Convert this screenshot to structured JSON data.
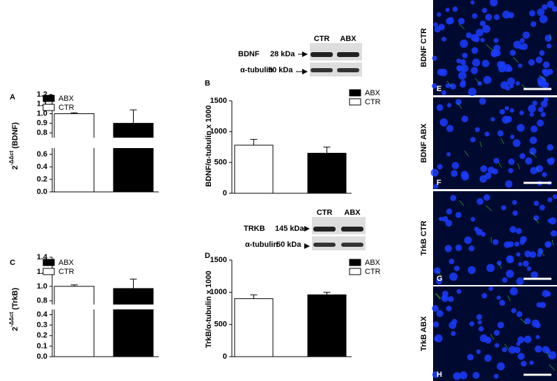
{
  "chart_data": [
    {
      "type": "bar",
      "panel_label": "A",
      "ylabel": "2",
      "ylabel_superscript": "-ΔΔct",
      "ylabel_suffix": " (BDNF)",
      "ylim": [
        0,
        1.2
      ],
      "axis_break": [
        0.7,
        0.75
      ],
      "yticks": [
        {
          "value": 0,
          "label": "0.0"
        },
        0.2,
        0.4,
        0.6,
        0.8,
        0.9,
        {
          "value": 1,
          "label": "1.0"
        },
        1.1,
        1.2
      ],
      "series": [
        {
          "name": "CTR",
          "color": "#ffffff",
          "values": [
            1.0
          ],
          "errors": [
            0.01
          ]
        },
        {
          "name": "ABX",
          "color": "#000000",
          "values": [
            0.9
          ],
          "errors": [
            0.14
          ]
        }
      ]
    },
    {
      "type": "bar",
      "panel_label": "B",
      "ylabel": "BDNF/α-tubulin x 1000",
      "ylim": [
        0,
        1500
      ],
      "yticks": [
        0,
        500,
        1000,
        1500
      ],
      "series": [
        {
          "name": "CTR",
          "color": "#ffffff",
          "values": [
            780
          ],
          "errors": [
            95
          ]
        },
        {
          "name": "ABX",
          "color": "#000000",
          "values": [
            650
          ],
          "errors": [
            100
          ]
        }
      ]
    },
    {
      "type": "bar",
      "panel_label": "C",
      "ylabel": "2",
      "ylabel_superscript": "-ΔΔct",
      "ylabel_suffix": " (TrkB)",
      "ylim": [
        0,
        1.4
      ],
      "axis_break": [
        0.45,
        0.75
      ],
      "yticks": [
        {
          "value": 0,
          "label": "0.0"
        },
        0.1,
        0.2,
        0.3,
        0.4,
        0.8,
        {
          "value": 1,
          "label": "1.0"
        },
        1.2,
        1.4
      ],
      "series": [
        {
          "name": "CTR",
          "color": "#ffffff",
          "values": [
            1.0
          ],
          "errors": [
            0.02
          ]
        },
        {
          "name": "ABX",
          "color": "#000000",
          "values": [
            0.97
          ],
          "errors": [
            0.13
          ]
        }
      ]
    },
    {
      "type": "bar",
      "panel_label": "D",
      "ylabel": "TrkB/α-tubulin x 1000",
      "ylim": [
        0,
        1500
      ],
      "yticks": [
        0,
        500,
        1000,
        1500
      ],
      "series": [
        {
          "name": "CTR",
          "color": "#ffffff",
          "values": [
            900
          ],
          "errors": [
            60
          ]
        },
        {
          "name": "ABX",
          "color": "#000000",
          "values": [
            960
          ],
          "errors": [
            40
          ]
        }
      ]
    }
  ],
  "blots": [
    {
      "lanes": [
        "CTR",
        "ABX"
      ],
      "target": "BDNF",
      "target_kda": "28 kDa",
      "control": "α-tubulin",
      "control_kda": "50 kDa"
    },
    {
      "lanes": [
        "CTR",
        "ABX"
      ],
      "target": "TRKB",
      "target_kda": "145 kDa",
      "control": "α-tubulin",
      "control_kda": "50 kDa"
    }
  ],
  "micrographs": [
    {
      "label": "BDNF CTR",
      "panel_label": "E"
    },
    {
      "label": "BDNF ABX",
      "panel_label": "F"
    },
    {
      "label": "TrkB CTR",
      "panel_label": "G"
    },
    {
      "label": "TrkB ABX",
      "panel_label": "H"
    }
  ]
}
